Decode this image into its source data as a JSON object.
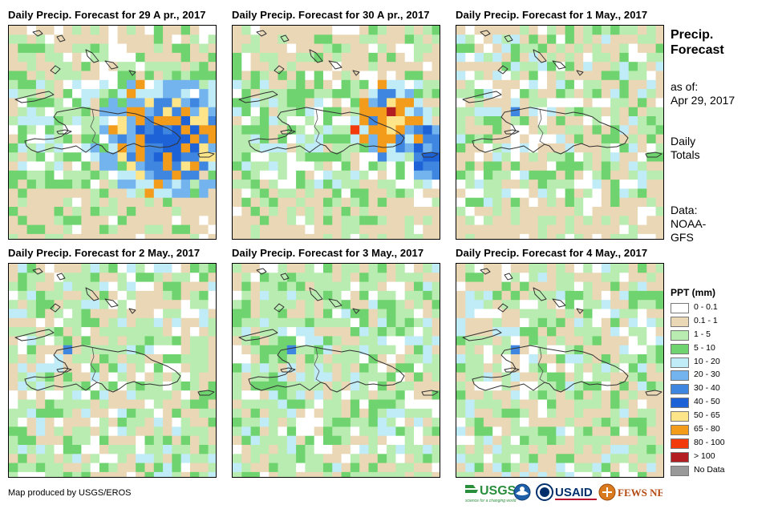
{
  "panels": [
    {
      "title": "Daily Precip. Forecast for 29 A pr., 2017",
      "seed": 11,
      "pattern": "storm1"
    },
    {
      "title": "Daily Precip. Forecast for 30 A pr., 2017",
      "seed": 23,
      "pattern": "storm2"
    },
    {
      "title": "Daily Precip. Forecast for 1 May., 2017",
      "seed": 37,
      "pattern": "light1"
    },
    {
      "title": "Daily Precip. Forecast for 2 May., 2017",
      "seed": 41,
      "pattern": "light2"
    },
    {
      "title": "Daily Precip. Forecast for 3 May., 2017",
      "seed": 53,
      "pattern": "light3"
    },
    {
      "title": "Daily Precip. Forecast for 4 May., 2017",
      "seed": 67,
      "pattern": "light2"
    }
  ],
  "side": {
    "heading": "Precip. Forecast",
    "as_of_label": "as of:",
    "as_of_date": "Apr 29, 2017",
    "daily": "Daily",
    "totals": "Totals",
    "data_label": "Data:",
    "data_source_1": "NOAA-",
    "data_source_2": "GFS"
  },
  "legend": {
    "title": "PPT (mm)",
    "items": [
      {
        "label": "0 - 0.1",
        "color": "#ffffff"
      },
      {
        "label": "0.1 - 1",
        "color": "#ead7b5"
      },
      {
        "label": "1 - 5",
        "color": "#b8ecb0"
      },
      {
        "label": "5 - 10",
        "color": "#6fd46f"
      },
      {
        "label": "10 - 20",
        "color": "#c0ecf8"
      },
      {
        "label": "20 - 30",
        "color": "#74b4ee"
      },
      {
        "label": "30 - 40",
        "color": "#3e86e0"
      },
      {
        "label": "40 - 50",
        "color": "#1e62d8"
      },
      {
        "label": "50 - 65",
        "color": "#ffe58a"
      },
      {
        "label": "65 - 80",
        "color": "#f39c1c"
      },
      {
        "label": "80 - 100",
        "color": "#f23a0c"
      },
      {
        "label": "> 100",
        "color": "#b21e22"
      },
      {
        "label": "No Data",
        "color": "#999999"
      }
    ]
  },
  "footer": {
    "credit": "Map produced by USGS/EROS",
    "logos": [
      "USGS",
      "NOAA",
      "USAID",
      "FEWS NET"
    ],
    "usgs_tagline": "science for a changing world"
  }
}
